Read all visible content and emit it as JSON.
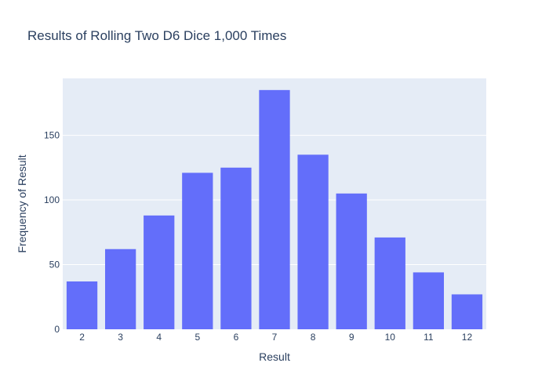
{
  "chart_data": {
    "type": "bar",
    "title": "Results of Rolling Two D6 Dice 1,000 Times",
    "xlabel": "Result",
    "ylabel": "Frequency of Result",
    "categories": [
      "2",
      "3",
      "4",
      "5",
      "6",
      "7",
      "8",
      "9",
      "10",
      "11",
      "12"
    ],
    "values": [
      37,
      62,
      88,
      121,
      125,
      185,
      135,
      105,
      71,
      44,
      27
    ],
    "ylim": [
      0,
      194
    ],
    "yticks": [
      0,
      50,
      100,
      150
    ],
    "ytick_labels": [
      "0",
      "50",
      "100",
      "150"
    ],
    "grid": true,
    "colors": {
      "bar": "#636efa",
      "plot_bg": "#e5ecf6",
      "grid": "#ffffff",
      "text": "#2a3f5f"
    }
  }
}
